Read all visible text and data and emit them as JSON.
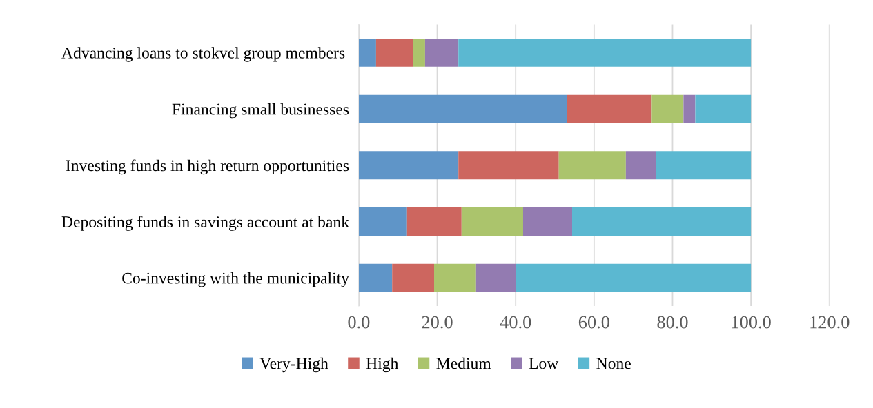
{
  "chart_data": {
    "type": "bar",
    "orientation": "horizontal",
    "stacked": true,
    "categories": [
      "Advancing loans to stokvel group members ",
      "Financing small businesses",
      "Investing funds in high return opportunities",
      "Depositing funds in savings account at bank",
      "Co-investing with the municipality"
    ],
    "series": [
      {
        "name": "Very-High",
        "color": "#5f95c8",
        "values": [
          4.4,
          53.1,
          25.4,
          12.3,
          8.5
        ]
      },
      {
        "name": "High",
        "color": "#cd665f",
        "values": [
          9.4,
          21.6,
          25.6,
          13.9,
          10.7
        ]
      },
      {
        "name": "Medium",
        "color": "#abc46c",
        "values": [
          3.1,
          8.1,
          17.1,
          15.7,
          10.7
        ]
      },
      {
        "name": "Low",
        "color": "#937bb1",
        "values": [
          8.5,
          3.0,
          7.7,
          12.5,
          10.2
        ]
      },
      {
        "name": "None",
        "color": "#5bb8d1",
        "values": [
          74.6,
          14.2,
          24.2,
          45.6,
          59.9
        ]
      }
    ],
    "xlim": [
      0,
      120
    ],
    "xticks": [
      {
        "value": 0,
        "label": "0.0"
      },
      {
        "value": 20,
        "label": "20.0"
      },
      {
        "value": 40,
        "label": "40.0"
      },
      {
        "value": 60,
        "label": "60.0"
      },
      {
        "value": 80,
        "label": "80.0"
      },
      {
        "value": 100,
        "label": "100.0"
      },
      {
        "value": 120,
        "label": "120.0"
      }
    ],
    "grid": "x",
    "legend": "bottom"
  }
}
